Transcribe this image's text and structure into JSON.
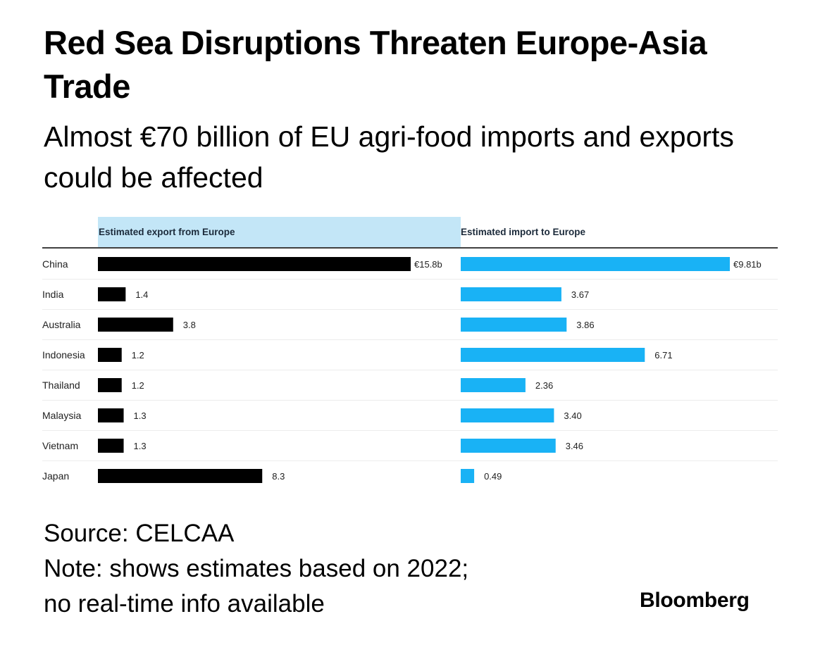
{
  "title": "Red Sea Disruptions Threaten Europe-Asia Trade",
  "subtitle": "Almost €70 billion of EU agri-food imports and exports could be affected",
  "source": "Source: CELCAA",
  "note_line1": "Note: shows estimates based on 2022;",
  "note_line2": "no real-time info available",
  "logo": "Bloomberg",
  "colors": {
    "export_bar": "#000000",
    "import_bar": "#19b2f5",
    "export_header_bg": "#c3e6f7",
    "header_text": "#1b2a3a"
  },
  "chart_data": {
    "type": "bar",
    "orientation": "horizontal",
    "categories": [
      "China",
      "India",
      "Australia",
      "Indonesia",
      "Thailand",
      "Malaysia",
      "Vietnam",
      "Japan"
    ],
    "series": [
      {
        "name": "Estimated export from Europe",
        "values": [
          15.8,
          1.4,
          3.8,
          1.2,
          1.2,
          1.3,
          1.3,
          8.3
        ],
        "labels": [
          "€15.8b",
          "1.4",
          "3.8",
          "1.2",
          "1.2",
          "1.3",
          "1.3",
          "8.3"
        ]
      },
      {
        "name": "Estimated import to Europe",
        "values": [
          9.81,
          3.67,
          3.86,
          6.71,
          2.36,
          3.4,
          3.46,
          0.49
        ],
        "labels": [
          "€9.81b",
          "3.67",
          "3.86",
          "6.71",
          "2.36",
          "3.40",
          "3.46",
          "0.49"
        ]
      }
    ],
    "unit": "billion euros",
    "grid": false
  }
}
